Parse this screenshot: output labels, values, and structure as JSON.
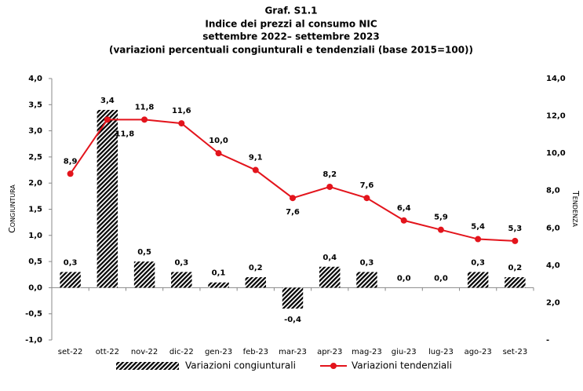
{
  "chart_data": {
    "type": "bar",
    "title": "Graf. S1.1",
    "subtitle": [
      "Indice dei prezzi al consumo NIC",
      "settembre 2022– settembre 2023",
      "(variazioni percentuali congiunturali e tendenziali (base 2015=100))"
    ],
    "y_label": "Congiuntura",
    "y2_label": "Tendenza",
    "categories": [
      "set-22",
      "ott-22",
      "nov-22",
      "dic-22",
      "gen-23",
      "feb-23",
      "mar-23",
      "apr-23",
      "mag-23",
      "giu-23",
      "lug-23",
      "ago-23",
      "set-23"
    ],
    "series": [
      {
        "name": "Variazioni congiunturali",
        "type": "bar",
        "color": "#000000",
        "values": [
          0.3,
          3.4,
          0.5,
          0.3,
          0.1,
          0.2,
          -0.4,
          0.4,
          0.3,
          0.0,
          0.0,
          0.3,
          0.2
        ],
        "value_labels": [
          "0,3",
          "3,4",
          "0,5",
          "0,3",
          "0,1",
          "0,2",
          "-0,4",
          "0,4",
          "0,3",
          "0,0",
          "0,0",
          "0,3",
          "0,2"
        ]
      },
      {
        "name": "Variazioni tendenziali",
        "type": "line",
        "axis": "y2",
        "color": "#e3141c",
        "values": [
          8.9,
          11.8,
          11.8,
          11.6,
          10.0,
          9.1,
          7.6,
          8.2,
          7.6,
          6.4,
          5.9,
          5.4,
          5.3
        ],
        "value_labels": [
          "8,9",
          "11,8",
          "11,8",
          "11,6",
          "10,0",
          "9,1",
          "7,6",
          "8,2",
          "7,6",
          "6,4",
          "5,9",
          "5,4",
          "5,3"
        ]
      }
    ],
    "ylim": [
      -1,
      4
    ],
    "yticks": [
      {
        "value": -1,
        "label": "-1,0"
      },
      {
        "value": -0.5,
        "label": "-0,5"
      },
      {
        "value": 0,
        "label": "0,0"
      },
      {
        "value": 0.5,
        "label": "0,5"
      },
      {
        "value": 1,
        "label": "1,0"
      },
      {
        "value": 1.5,
        "label": "1,5"
      },
      {
        "value": 2,
        "label": "2,0"
      },
      {
        "value": 2.5,
        "label": "2,5"
      },
      {
        "value": 3,
        "label": "3,0"
      },
      {
        "value": 3.5,
        "label": "3,5"
      },
      {
        "value": 4,
        "label": "4,0"
      }
    ],
    "y2lim": [
      0,
      14
    ],
    "y2ticks": [
      {
        "value": 0,
        "label": "-"
      },
      {
        "value": 2,
        "label": "2,0"
      },
      {
        "value": 4,
        "label": "4,0"
      },
      {
        "value": 6,
        "label": "6,0"
      },
      {
        "value": 8,
        "label": "8,0"
      },
      {
        "value": 10,
        "label": "10,0"
      },
      {
        "value": 12,
        "label": "12,0"
      },
      {
        "value": 14,
        "label": "14,0"
      }
    ],
    "grid": false,
    "legend": "bottom"
  }
}
